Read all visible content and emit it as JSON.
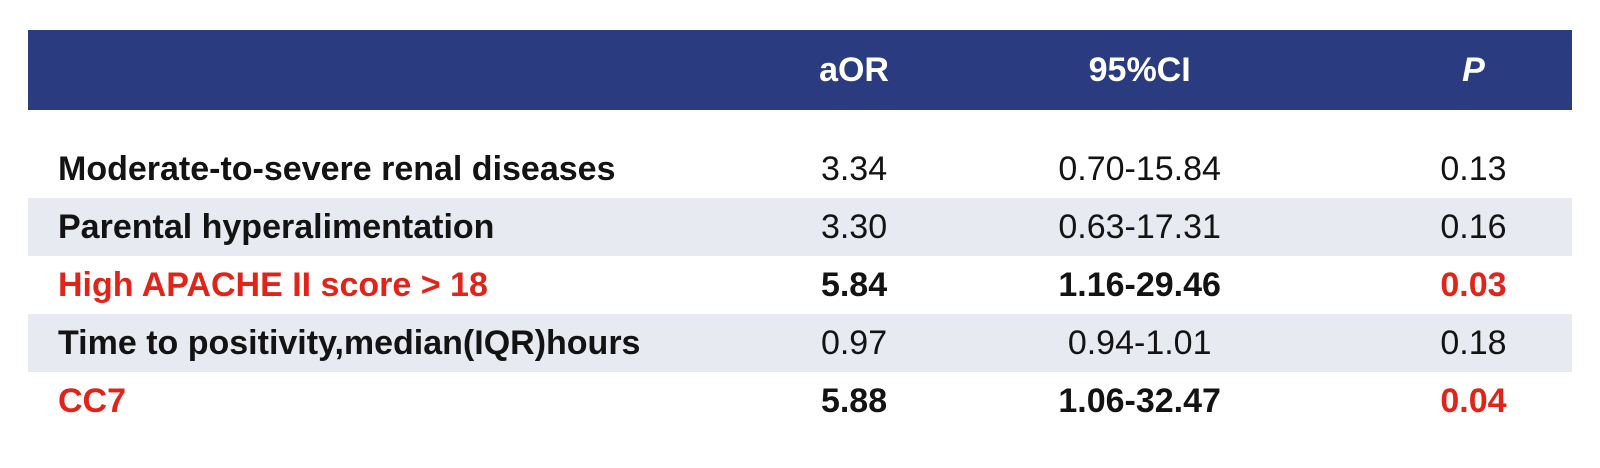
{
  "table": {
    "columns": [
      {
        "label": ""
      },
      {
        "label": "aOR"
      },
      {
        "label": "95%CI"
      },
      {
        "label": "P",
        "italic": true
      }
    ],
    "rows": [
      {
        "label": "Moderate-to-severe renal diseases",
        "aOR": "3.34",
        "ci": "0.70-15.84",
        "p": "0.13",
        "striped": false,
        "significant": false
      },
      {
        "label": "Parental hyperalimentation",
        "aOR": "3.30",
        "ci": "0.63-17.31",
        "p": "0.16",
        "striped": true,
        "significant": false
      },
      {
        "label": "High APACHE II score > 18",
        "aOR": "5.84",
        "ci": "1.16-29.46",
        "p": "0.03",
        "striped": false,
        "significant": true
      },
      {
        "label": "Time to positivity,median(IQR)hours",
        "aOR": "0.97",
        "ci": "0.94-1.01",
        "p": "0.18",
        "striped": true,
        "significant": false
      },
      {
        "label": "CC7",
        "aOR": "5.88",
        "ci": "1.06-32.47",
        "p": "0.04",
        "striped": false,
        "significant": true
      }
    ],
    "colors": {
      "header_bg": "#2A3B7F",
      "header_text": "#FFFFFF",
      "stripe_bg": "#E8EAF1",
      "text": "#131313",
      "highlight": "#E2231A",
      "page_bg": "#FFFFFF"
    }
  },
  "chart_data": {
    "type": "table",
    "title": "",
    "columns": [
      "",
      "aOR",
      "95%CI",
      "P"
    ],
    "rows": [
      [
        "Moderate-to-severe renal diseases",
        "3.34",
        "0.70-15.84",
        "0.13"
      ],
      [
        "Parental hyperalimentation",
        "3.30",
        "0.63-17.31",
        "0.16"
      ],
      [
        "High APACHE II score > 18",
        "5.84",
        "1.16-29.46",
        "0.03"
      ],
      [
        "Time to positivity,median(IQR)hours",
        "0.97",
        "0.94-1.01",
        "0.18"
      ],
      [
        "CC7",
        "5.88",
        "1.06-32.47",
        "0.04"
      ]
    ],
    "significant_rows": [
      "High APACHE II score > 18",
      "CC7"
    ],
    "layout": "alternating row stripes, dark blue header, significant rows in red/bold"
  }
}
